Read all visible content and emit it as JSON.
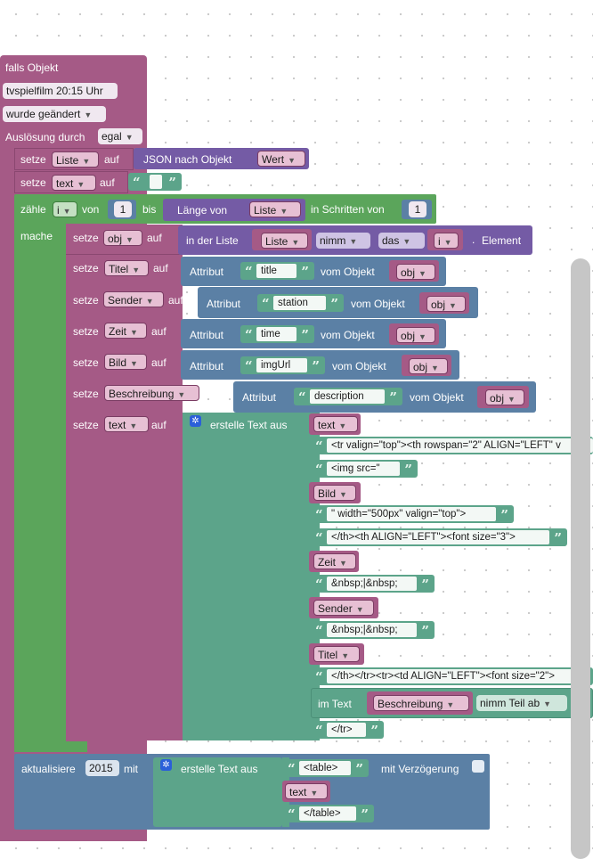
{
  "colors": {
    "event": "#a55a86",
    "variable": "#a55a86",
    "loop": "#5ba55b",
    "text": "#5ca48a",
    "object": "#5b80a5",
    "list": "#745ba5"
  },
  "trigger": {
    "title": "falls Objekt",
    "object_id": "tvspielfilm 20:15 Uhr",
    "condition": "wurde geändert",
    "source_label": "Auslösung durch",
    "source_value": "egal"
  },
  "kw": {
    "setze": "setze",
    "auf": "auf",
    "zaehle": "zähle",
    "von": "von",
    "bis": "bis",
    "in_schritten": "in Schritten von",
    "mache": "mache",
    "laenge_von": "Länge von",
    "in_der_liste": "in der Liste",
    "element": "Element",
    "attribut": "Attribut",
    "vom_objekt": "vom Objekt",
    "erstelle_text": "erstelle Text aus",
    "im_text": "im Text",
    "json_nach_objekt": "JSON nach Objekt",
    "aktualisiere": "aktualisiere",
    "mit": "mit",
    "mit_verzoegerung": "mit Verzögerung"
  },
  "vars": {
    "liste": "Liste",
    "text": "text",
    "i": "i",
    "obj": "obj",
    "titel": "Titel",
    "sender": "Sender",
    "zeit": "Zeit",
    "bild": "Bild",
    "beschreibung": "Beschreibung",
    "wert": "Wert"
  },
  "loop": {
    "from": "1",
    "step": "1"
  },
  "list_get": {
    "mode": "nimm",
    "where": "das"
  },
  "attributes": {
    "title": "title",
    "station": "station",
    "time": "time",
    "imgUrl": "imgUrl",
    "description": "description"
  },
  "strings": {
    "s1": "<tr valign=\"top\"><th rowspan=\"2\" ALIGN=\"LEFT\" v",
    "s2": "<img src=\"",
    "s3": "\" width=\"500px\" valign=\"top\">",
    "s4": "</th><th ALIGN=\"LEFT\"><font size=\"3\">",
    "s5": "&nbsp;|&nbsp;",
    "s6": "&nbsp;|&nbsp;",
    "s7": "</th></tr><tr><td ALIGN=\"LEFT\"><font size=\"2\">",
    "s8": "</tr>",
    "table_open": "<table>",
    "table_close": "</table>"
  },
  "substring_mode": "nimm Teil ab",
  "update": {
    "target": "2015"
  }
}
